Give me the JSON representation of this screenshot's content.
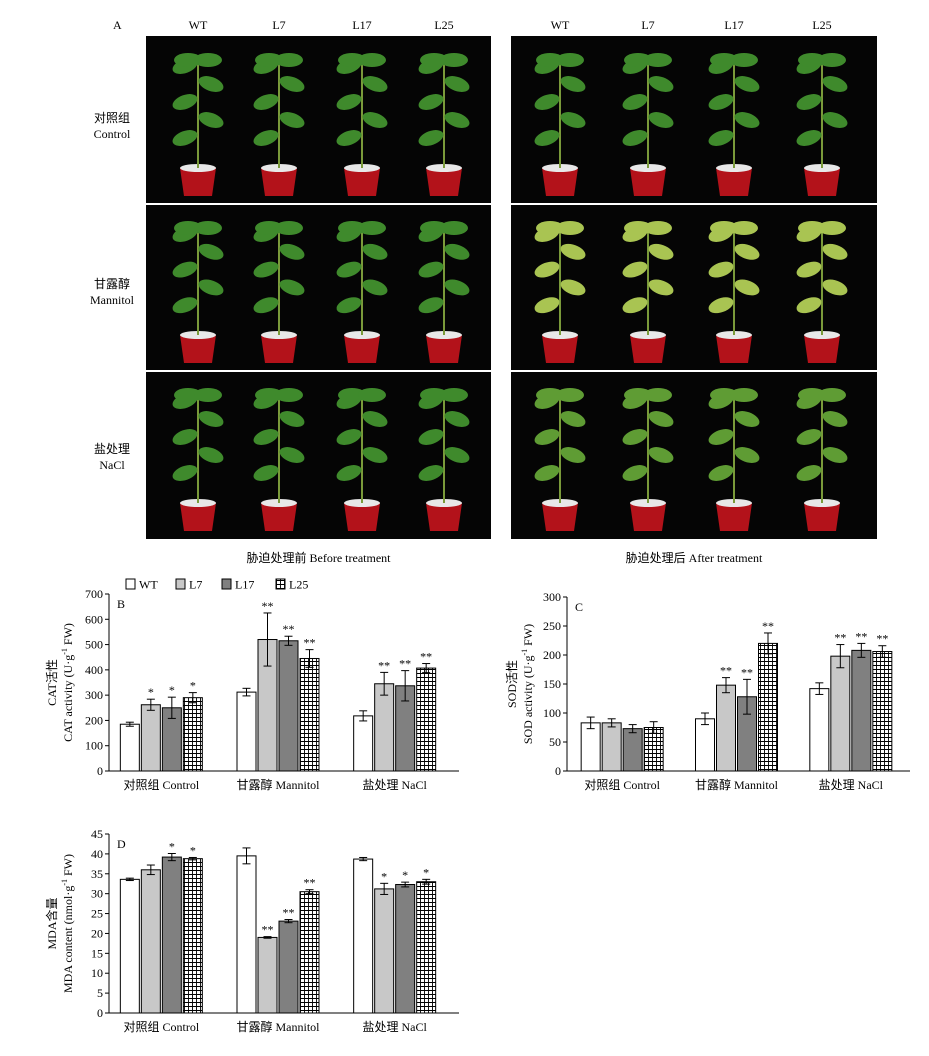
{
  "photo_panel": {
    "letter": "A",
    "columns": [
      "WT",
      "L7",
      "L17",
      "L25"
    ],
    "rows": [
      {
        "cn": "对照组",
        "en": "Control"
      },
      {
        "cn": "甘露醇",
        "en": "Mannitol"
      },
      {
        "cn": "盐处理",
        "en": "NaCl"
      }
    ],
    "caption_before": "胁迫处理前 Before treatment",
    "caption_after": "胁迫处理后 After treatment"
  },
  "legend": [
    "WT",
    "L7",
    "L17",
    "L25"
  ],
  "colors": {
    "WT": "#ffffff",
    "L7": "#c8c8c8",
    "L17": "#808080",
    "L25": "hatch"
  },
  "chart_data": [
    {
      "type": "bar",
      "panel": "B",
      "categories": [
        "对照组 Control",
        "甘露醇 Mannitol",
        "盐处理 NaCl"
      ],
      "series": [
        {
          "name": "WT",
          "values": [
            185,
            312,
            218
          ],
          "errors": [
            8,
            15,
            20
          ],
          "sig": [
            "",
            "",
            ""
          ]
        },
        {
          "name": "L7",
          "values": [
            262,
            520,
            345
          ],
          "errors": [
            22,
            105,
            45
          ],
          "sig": [
            "*",
            "**",
            "**"
          ]
        },
        {
          "name": "L17",
          "values": [
            250,
            515,
            337
          ],
          "errors": [
            42,
            18,
            60
          ],
          "sig": [
            "*",
            "**",
            "**"
          ]
        },
        {
          "name": "L25",
          "values": [
            290,
            445,
            407
          ],
          "errors": [
            20,
            35,
            18
          ],
          "sig": [
            "*",
            "**",
            "**"
          ]
        }
      ],
      "ylabel_cn": "CAT活性",
      "ylabel_en": "CAT activity (U·g",
      "ylabel_sup": "-1",
      "ylabel_tail": " FW)",
      "ylim": [
        0,
        700
      ],
      "yticks": [
        0,
        100,
        200,
        300,
        400,
        500,
        600,
        700
      ]
    },
    {
      "type": "bar",
      "panel": "C",
      "categories": [
        "对照组 Control",
        "甘露醇 Mannitol",
        "盐处理 NaCl"
      ],
      "series": [
        {
          "name": "WT",
          "values": [
            83,
            90,
            142
          ],
          "errors": [
            10,
            10,
            10
          ],
          "sig": [
            "",
            "",
            ""
          ]
        },
        {
          "name": "L7",
          "values": [
            83,
            148,
            198
          ],
          "errors": [
            7,
            13,
            20
          ],
          "sig": [
            "",
            "**",
            "**"
          ]
        },
        {
          "name": "L17",
          "values": [
            73,
            128,
            208
          ],
          "errors": [
            7,
            30,
            12
          ],
          "sig": [
            "",
            "**",
            "**"
          ]
        },
        {
          "name": "L25",
          "values": [
            75,
            220,
            206
          ],
          "errors": [
            10,
            18,
            10
          ],
          "sig": [
            "",
            "**",
            "**"
          ]
        }
      ],
      "ylabel_cn": "SOD活性",
      "ylabel_en": "SOD activity (U·g",
      "ylabel_sup": "-1",
      "ylabel_tail": " FW)",
      "ylim": [
        0,
        300
      ],
      "yticks": [
        0,
        50,
        100,
        150,
        200,
        250,
        300
      ]
    },
    {
      "type": "bar",
      "panel": "D",
      "categories": [
        "对照组 Control",
        "甘露醇 Mannitol",
        "盐处理 NaCl"
      ],
      "series": [
        {
          "name": "WT",
          "values": [
            33.6,
            39.5,
            38.7
          ],
          "errors": [
            0.3,
            2.0,
            0.4
          ],
          "sig": [
            "",
            "",
            ""
          ]
        },
        {
          "name": "L7",
          "values": [
            36.0,
            19.0,
            31.2
          ],
          "errors": [
            1.2,
            0.2,
            1.4
          ],
          "sig": [
            "",
            "**",
            "*"
          ]
        },
        {
          "name": "L17",
          "values": [
            39.2,
            23.1,
            32.3
          ],
          "errors": [
            0.9,
            0.4,
            0.6
          ],
          "sig": [
            "*",
            "**",
            "*"
          ]
        },
        {
          "name": "L25",
          "values": [
            38.8,
            30.5,
            33.0
          ],
          "errors": [
            0.3,
            0.5,
            0.6
          ],
          "sig": [
            "*",
            "**",
            "*"
          ]
        }
      ],
      "ylabel_cn": "MDA含量",
      "ylabel_en": "MDA content (nmol·g",
      "ylabel_sup": "-1",
      "ylabel_tail": " FW)",
      "ylim": [
        0,
        45
      ],
      "yticks": [
        0,
        5,
        10,
        15,
        20,
        25,
        30,
        35,
        40,
        45
      ]
    }
  ]
}
